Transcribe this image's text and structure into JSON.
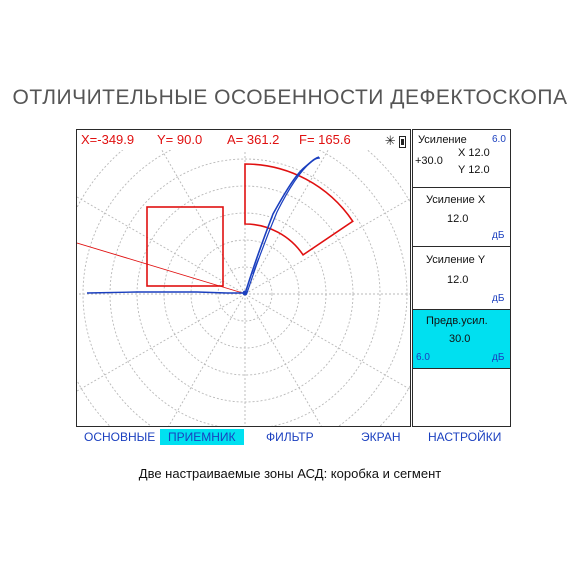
{
  "heading": "ОТЛИЧИТЕЛЬНЫЕ ОСОБЕННОСТИ ДЕФЕКТОСКОПА",
  "readout": {
    "x": "X=-349.9",
    "y": "Y=  90.0",
    "a": "A= 361.2",
    "f": "F= 165.6"
  },
  "status_icons": [
    "sun-icon",
    "battery-icon"
  ],
  "panel": {
    "gain": {
      "title": "Усиление",
      "range": "6.0",
      "value": "+30.0",
      "x": "X 12.0",
      "y": "Y 12.0"
    },
    "gain_x": {
      "title": "Усиление X",
      "value": "12.0",
      "unit": "дБ"
    },
    "gain_y": {
      "title": "Усиление Y",
      "value": "12.0",
      "unit": "дБ"
    },
    "pre_gain": {
      "title": "Предв.усил.",
      "value": "30.0",
      "step": "6.0",
      "unit": "дБ"
    }
  },
  "menu": [
    {
      "label": "ОСНОВНЫЕ",
      "active": false
    },
    {
      "label": "ПРИЕМНИК",
      "active": true
    },
    {
      "label": "ФИЛЬТР",
      "active": false
    },
    {
      "label": "ЭКРАН",
      "active": false
    },
    {
      "label": "НАСТРОЙКИ",
      "active": false
    }
  ],
  "caption": "Две настраиваемые зоны АСД: коробка и сегмент",
  "colors": {
    "gate": "#e01010",
    "signal": "#1a3fbf",
    "highlight": "#00e0f0",
    "grid": "#b8b8b8"
  }
}
